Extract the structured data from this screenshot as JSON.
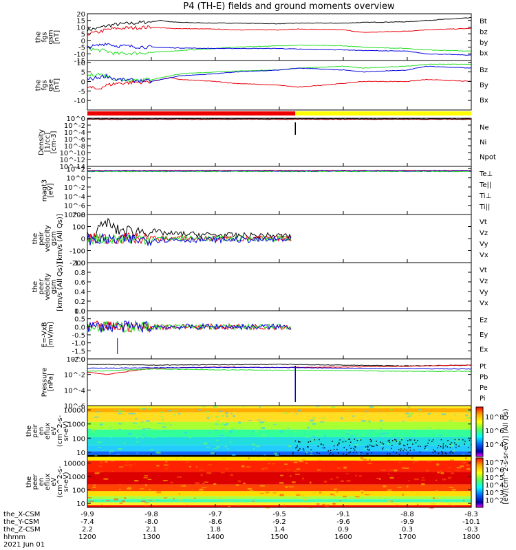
{
  "title": "P4 (TH-E) fields and ground moments overview",
  "colors": {
    "black": "#000000",
    "red": "#e8000b",
    "green": "#22dd22",
    "blue": "#0000dd",
    "yellow": "#ffff00",
    "statusRed": "#ee0000"
  },
  "chart_data": [
    {
      "type": "line",
      "id": "fgs_gsm",
      "ylabel": [
        "the",
        "fgs",
        "gsm",
        "[nT]"
      ],
      "ylim": [
        -15,
        20
      ],
      "yticks": [
        "20",
        "15",
        "10",
        "5",
        "0",
        "-5",
        "-10",
        "-15"
      ],
      "ytickvals": [
        20,
        15,
        10,
        5,
        0,
        -5,
        -10,
        -15
      ],
      "legend": [
        "Bt",
        "bz",
        "by",
        "bx"
      ],
      "series": [
        {
          "name": "Bt",
          "color": "#000000",
          "x": [
            1200,
            1215,
            1230,
            1245,
            1300,
            1315,
            1330,
            1345,
            1400,
            1430,
            1500,
            1530,
            1600,
            1630,
            1700,
            1730,
            1800
          ],
          "y": [
            8,
            9,
            11,
            12,
            14,
            15,
            14,
            13.5,
            13,
            13,
            12.5,
            13,
            13,
            13.5,
            14,
            15,
            17
          ]
        },
        {
          "name": "bz",
          "color": "#e8000b",
          "x": [
            1200,
            1215,
            1230,
            1245,
            1300,
            1330,
            1400,
            1430,
            1500,
            1530,
            1600,
            1630,
            1700,
            1730,
            1800
          ],
          "y": [
            5,
            6,
            8,
            9,
            10,
            9,
            8.5,
            8,
            8,
            8.5,
            8,
            6,
            7,
            8,
            9
          ]
        },
        {
          "name": "by",
          "color": "#22dd22",
          "x": [
            1200,
            1215,
            1230,
            1245,
            1300,
            1330,
            1400,
            1430,
            1500,
            1530,
            1600,
            1630,
            1700,
            1730,
            1800
          ],
          "y": [
            -6,
            -7,
            -8,
            -10,
            -9,
            -8,
            -6,
            -5,
            -4,
            -3.5,
            -4,
            -5,
            -6,
            -7,
            -8
          ]
        },
        {
          "name": "bx",
          "color": "#0000dd",
          "x": [
            1200,
            1215,
            1230,
            1245,
            1300,
            1330,
            1400,
            1430,
            1500,
            1530,
            1600,
            1630,
            1700,
            1730,
            1800
          ],
          "y": [
            -5,
            -4,
            -2,
            -4,
            -5,
            -5.5,
            -6,
            -6,
            -6,
            -6.5,
            -7,
            -7.5,
            -8,
            -10,
            -11
          ]
        }
      ]
    },
    {
      "type": "line",
      "id": "fgs_gse",
      "ylabel": [
        "the",
        "fgs",
        "gse",
        "[nT]"
      ],
      "ylim": [
        -15,
        11
      ],
      "yticks": [
        "10",
        "5",
        "0",
        "-5",
        "-10"
      ],
      "ytickvals": [
        10,
        5,
        0,
        -5,
        -10
      ],
      "legend": [
        "Bz",
        "By",
        "Bx"
      ],
      "series": [
        {
          "name": "Bz",
          "color": "#e8000b",
          "x": [
            1200,
            1215,
            1230,
            1245,
            1300,
            1315,
            1330,
            1345,
            1400,
            1430,
            1500,
            1530,
            1600,
            1630,
            1700,
            1730,
            1800
          ],
          "y": [
            -3,
            -4,
            -2,
            -1,
            0,
            1,
            2,
            1,
            0,
            -1,
            -2,
            -3,
            -1,
            0,
            0,
            1,
            0
          ]
        },
        {
          "name": "By",
          "color": "#22dd22",
          "x": [
            1200,
            1215,
            1230,
            1245,
            1300,
            1315,
            1330,
            1345,
            1400,
            1430,
            1500,
            1530,
            1600,
            1630,
            1700,
            1730,
            1800
          ],
          "y": [
            3,
            4,
            3,
            1,
            1,
            2,
            3,
            4,
            5,
            5.5,
            6,
            7,
            8,
            7,
            8,
            9,
            9
          ]
        },
        {
          "name": "Bx",
          "color": "#0000dd",
          "x": [
            1200,
            1215,
            1230,
            1245,
            1300,
            1315,
            1330,
            1345,
            1400,
            1430,
            1500,
            1530,
            1600,
            1630,
            1700,
            1730,
            1800
          ],
          "y": [
            1,
            2,
            3,
            1,
            0,
            1,
            2,
            3,
            4,
            5,
            6,
            7,
            6,
            5,
            6,
            8,
            7
          ]
        }
      ]
    },
    {
      "type": "line",
      "id": "density",
      "ylabel": [
        "Density",
        "[1/cc]",
        "[cm-3]"
      ],
      "ylim": [
        -14,
        0
      ],
      "scale": "log",
      "yticks": [
        "10^0",
        "10^-2",
        "10^-4",
        "10^-6",
        "10^-8",
        "10^-10",
        "10^-12",
        "10^-14"
      ],
      "ytickvals": [
        0,
        -2,
        -4,
        -6,
        -8,
        -10,
        -12,
        -14
      ],
      "legend": [
        "Ne",
        "Ni",
        "Npot"
      ],
      "series": [
        {
          "name": "Ne",
          "color": "#e8000b",
          "x": [
            1200,
            1800
          ],
          "y": [
            -0.3,
            -0.3
          ]
        },
        {
          "name": "Ni",
          "color": "#000000",
          "x": [
            1200,
            1800
          ],
          "y": [
            -0.2,
            -0.2
          ]
        }
      ]
    },
    {
      "type": "line",
      "id": "temperature",
      "ylabel": [
        "magt3",
        "[eV]"
      ],
      "ylim": [
        -8,
        2.5
      ],
      "scale": "log",
      "yticks": [
        "10^2",
        "10^0",
        "10^-2",
        "10^-4",
        "10^-6",
        "10^-8"
      ],
      "ytickvals": [
        2,
        0,
        -2,
        -4,
        -6,
        -8
      ],
      "legend": [
        "Te⊥",
        "Te||",
        "Ti⊥",
        "Ti||"
      ],
      "series": [
        {
          "name": "Te⊥",
          "color": "#e8000b",
          "x": [
            1200,
            1800
          ],
          "y": [
            1.6,
            1.6
          ]
        },
        {
          "name": "Ti||",
          "color": "#22dd22",
          "x": [
            1200,
            1800
          ],
          "y": [
            1.4,
            1.4
          ]
        },
        {
          "name": "Ti⊥",
          "color": "#0000dd",
          "x": [
            1200,
            1800
          ],
          "y": [
            1.5,
            1.5
          ]
        }
      ]
    },
    {
      "type": "line",
      "id": "peir_velocity",
      "ylabel": [
        "the",
        "peir",
        "velocity",
        "gsm",
        "[km/s (All Qs)]"
      ],
      "ylim": [
        -200,
        200
      ],
      "yticks": [
        "200",
        "100",
        "0",
        "-100",
        "-200"
      ],
      "ytickvals": [
        200,
        100,
        0,
        -100,
        -200
      ],
      "legend": [
        "Vt",
        "Vz",
        "Vy",
        "Vx"
      ],
      "series": [
        {
          "name": "Vt",
          "color": "#000000",
          "x": [
            1200,
            1215,
            1230,
            1245,
            1300,
            1330,
            1400,
            1430,
            1500,
            1520
          ],
          "y": [
            20,
            60,
            140,
            70,
            60,
            40,
            30,
            25,
            25,
            20
          ]
        },
        {
          "name": "Vz",
          "color": "#e8000b",
          "x": [
            1200,
            1520
          ],
          "y": [
            0,
            0
          ]
        },
        {
          "name": "Vy",
          "color": "#22dd22",
          "x": [
            1200,
            1520
          ],
          "y": [
            0,
            0
          ]
        },
        {
          "name": "Vx",
          "color": "#0000dd",
          "x": [
            1200,
            1520
          ],
          "y": [
            -10,
            -10
          ]
        }
      ]
    },
    {
      "type": "line",
      "id": "peer_velocity",
      "ylabel": [
        "the",
        "peer",
        "velocity",
        "gsm",
        "[km/s (All Qs)]"
      ],
      "ylim": [
        0,
        1
      ],
      "yticks": [
        "1.0",
        "0.8",
        "0.6",
        "0.4",
        "0.2",
        "0.0"
      ],
      "ytickvals": [
        1,
        0.8,
        0.6,
        0.4,
        0.2,
        0
      ],
      "legend": [
        "Vt",
        "Vz",
        "Vy",
        "Vx"
      ],
      "series": []
    },
    {
      "type": "line",
      "id": "efield",
      "ylabel": [
        "E=-VxB",
        "[mV/m]"
      ],
      "ylim": [
        -2,
        1
      ],
      "yticks": [
        "1.0",
        "0.5",
        "0.0",
        "-0.5",
        "-1.0",
        "-1.5",
        "-2.0"
      ],
      "ytickvals": [
        1,
        0.5,
        0,
        -0.5,
        -1,
        -1.5,
        -2
      ],
      "legend": [
        "Ez",
        "Ey",
        "Ex"
      ],
      "series": [
        {
          "name": "Ez",
          "color": "#e8000b",
          "x": [
            1200,
            1520
          ],
          "y": [
            0,
            0
          ]
        },
        {
          "name": "Ey",
          "color": "#22dd22",
          "x": [
            1200,
            1520
          ],
          "y": [
            0,
            0
          ]
        },
        {
          "name": "Ex",
          "color": "#0000dd",
          "x": [
            1200,
            1520
          ],
          "y": [
            0,
            0
          ]
        }
      ]
    },
    {
      "type": "line",
      "id": "pressure",
      "ylabel": [
        "Pressure",
        "[nPa]"
      ],
      "ylim": [
        -6,
        0
      ],
      "scale": "log",
      "yticks": [
        "10^0",
        "10^-2",
        "10^-4",
        "10^-6"
      ],
      "ytickvals": [
        0,
        -2,
        -4,
        -6
      ],
      "legend": [
        "Pt",
        "Pb",
        "Pe",
        "Pi"
      ],
      "series": [
        {
          "name": "Pt",
          "color": "#000000",
          "x": [
            1200,
            1300,
            1400,
            1500,
            1600,
            1700,
            1800
          ],
          "y": [
            -0.7,
            -0.8,
            -0.75,
            -0.7,
            -0.8,
            -0.9,
            -0.8
          ]
        },
        {
          "name": "Pb",
          "color": "#e8000b",
          "x": [
            1200,
            1230,
            1300,
            1400,
            1500,
            1600,
            1700,
            1800
          ],
          "y": [
            -1.7,
            -2.0,
            -1.2,
            -1.05,
            -1.1,
            -1.05,
            -0.95,
            -0.8
          ]
        },
        {
          "name": "Pe",
          "color": "#22dd22",
          "x": [
            1200,
            1300,
            1400,
            1500,
            1600,
            1700,
            1800
          ],
          "y": [
            -1.6,
            -1.3,
            -1.4,
            -1.45,
            -1.5,
            -1.6,
            -1.6
          ]
        },
        {
          "name": "Pi",
          "color": "#0000dd",
          "x": [
            1200,
            1300,
            1400,
            1500,
            1600,
            1700,
            1800
          ],
          "y": [
            -1.2,
            -1.15,
            -1.1,
            -1.1,
            -1.2,
            -1.25,
            -1.3
          ]
        }
      ]
    },
    {
      "type": "heatmap",
      "id": "peir_eflux",
      "ylabel": [
        "the",
        "peir",
        "en",
        "eflux",
        "eV",
        "(cm^2-s-",
        "sr-eV)"
      ],
      "ylim": [
        5,
        20000
      ],
      "scale": "log",
      "yticks": [
        "10000",
        "1000",
        "100",
        "10"
      ],
      "ytickvals": [
        10000,
        1000,
        100,
        10
      ]
    },
    {
      "type": "heatmap",
      "id": "peer_eflux",
      "ylabel": [
        "the",
        "peer",
        "en",
        "eflux",
        "eV",
        "(cm^2-s-",
        "sr-eV)"
      ],
      "ylim": [
        5,
        30000
      ],
      "scale": "log",
      "yticks": [
        "10000",
        "1000",
        "100",
        "10"
      ],
      "ytickvals": [
        10000,
        1000,
        100,
        10
      ]
    }
  ],
  "colorbar": {
    "label": "[eV/(cm^2-s-sr-eV)] (All Qs)",
    "ticks_upper": [
      "10^8",
      "10^6",
      "10^4"
    ],
    "ticks_lower": [
      "10^7",
      "10^6",
      "10^5",
      "10^4",
      "10^3",
      "10^2"
    ]
  },
  "xaxis": {
    "rows": [
      {
        "label": "the_X-CSM",
        "values": [
          "-9.9",
          "-9.8",
          "-9.7",
          "-9.5",
          "-9.1",
          "-8.8",
          "-8.3"
        ]
      },
      {
        "label": "the_Y-CSM",
        "values": [
          "-7.4",
          "-8.0",
          "-8.6",
          "-9.2",
          "-9.6",
          "-9.9",
          "-10.1"
        ]
      },
      {
        "label": "the_Z-CSM",
        "values": [
          "2.2",
          "2.1",
          "1.8",
          "1.4",
          "0.9",
          "0.3",
          "-0.3"
        ]
      },
      {
        "label": "hhmm",
        "values": [
          "1200",
          "1300",
          "1400",
          "1500",
          "1600",
          "1700",
          "1800"
        ]
      }
    ],
    "date": "2021 Jun 01"
  }
}
